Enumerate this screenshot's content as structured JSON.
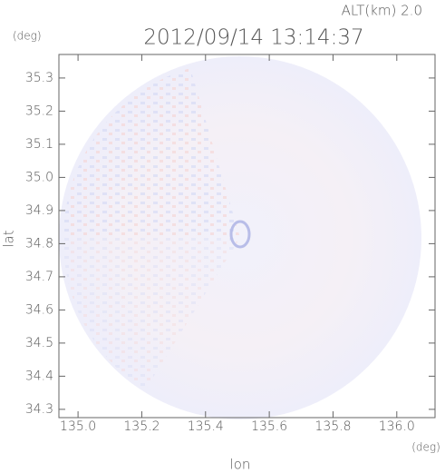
{
  "chart_data": {
    "type": "image",
    "title": "2012/09/14 13:14:37",
    "subtitle": "ALT(km) 2.0",
    "xlabel": "lon",
    "ylabel": "lat",
    "xunit": "(deg)",
    "yunit": "(deg)",
    "xlim": [
      134.94,
      136.12
    ],
    "ylim": [
      34.275,
      35.371
    ],
    "xticks": [
      {
        "value": 135.0,
        "label": "135.0"
      },
      135.2,
      135.4,
      135.6,
      135.8,
      {
        "value": 136.0,
        "label": "136.0"
      }
    ],
    "yticks": [
      34.3,
      34.4,
      34.5,
      34.6,
      34.7,
      34.8,
      34.9,
      {
        "value": 35.0,
        "label": "35.0"
      },
      35.1,
      35.2,
      35.3
    ]
  }
}
